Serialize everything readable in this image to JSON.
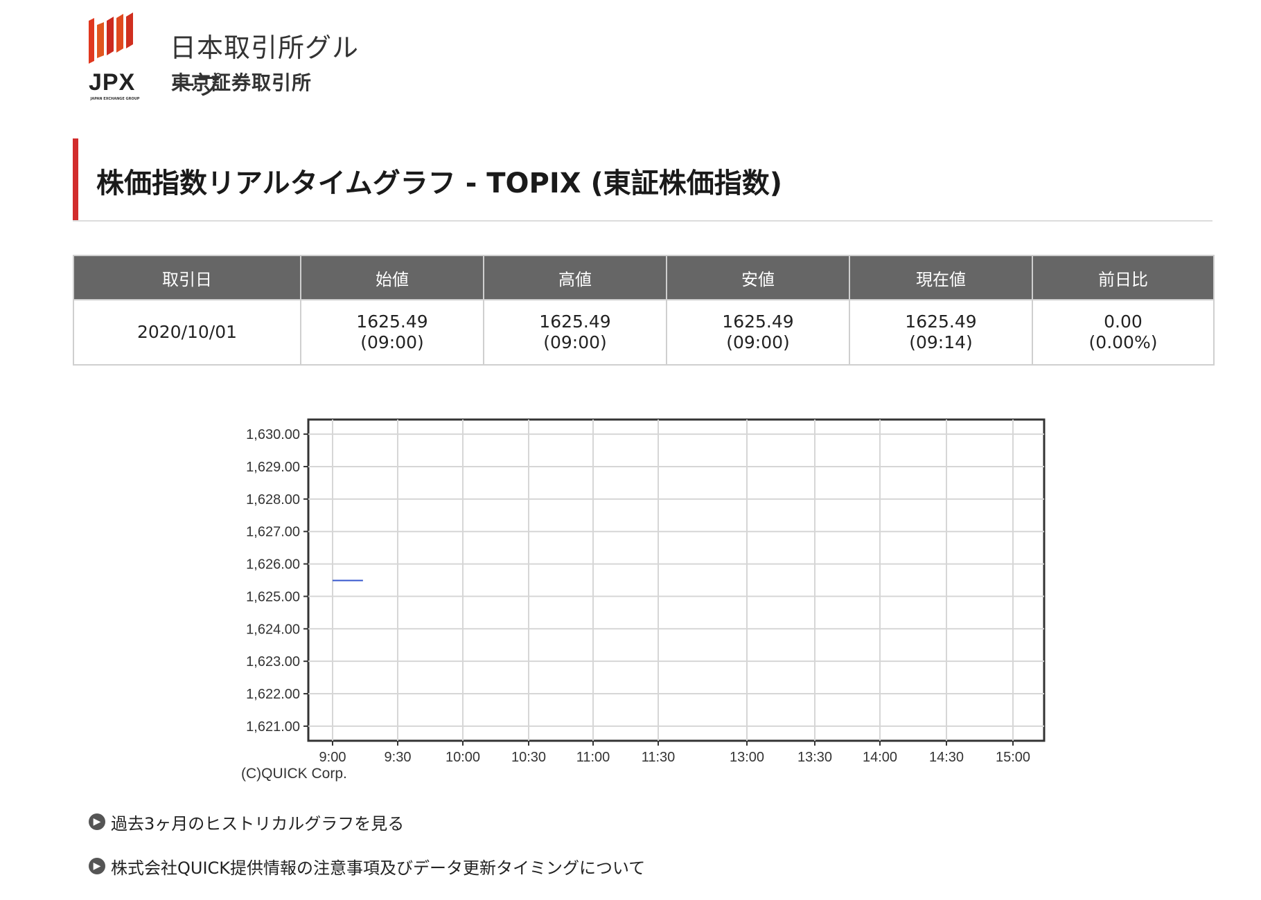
{
  "logo": {
    "mark_text": "JPX",
    "mark_sub": "JAPAN EXCHANGE GROUP",
    "group_name": "日本取引所グループ",
    "exchange_name": "東京証券取引所"
  },
  "page_title": "株価指数リアルタイムグラフ - TOPIX (東証株価指数)",
  "table": {
    "headers": [
      "取引日",
      "始値",
      "高値",
      "安値",
      "現在値",
      "前日比"
    ],
    "row": {
      "date": "2020/10/01",
      "open": {
        "value": "1625.49",
        "time": "(09:00)"
      },
      "high": {
        "value": "1625.49",
        "time": "(09:00)"
      },
      "low": {
        "value": "1625.49",
        "time": "(09:00)"
      },
      "current": {
        "value": "1625.49",
        "time": "(09:14)"
      },
      "change": {
        "value": "0.00",
        "percent": "(0.00%)"
      }
    }
  },
  "chart_data": {
    "type": "line",
    "x_ticks": [
      "9:00",
      "9:30",
      "10:00",
      "10:30",
      "11:00",
      "11:30",
      "13:00",
      "13:30",
      "14:00",
      "14:30",
      "15:00"
    ],
    "y_ticks": [
      "1,630.00",
      "1,629.00",
      "1,628.00",
      "1,627.00",
      "1,626.00",
      "1,625.00",
      "1,624.00",
      "1,623.00",
      "1,622.00",
      "1,621.00"
    ],
    "ylim": [
      1620.55,
      1630.45
    ],
    "series": [
      {
        "values": [
          {
            "x": "9:00",
            "y": 1625.49
          },
          {
            "x": "9:14",
            "y": 1625.49
          }
        ]
      }
    ],
    "grid": true,
    "credit": "(C)QUICK Corp.",
    "line_color": "#3355cc"
  },
  "links": [
    {
      "label": "過去3ヶ月のヒストリカルグラフを見る"
    },
    {
      "label": "株式会社QUICK提供情報の注意事項及びデータ更新タイミングについて"
    }
  ]
}
